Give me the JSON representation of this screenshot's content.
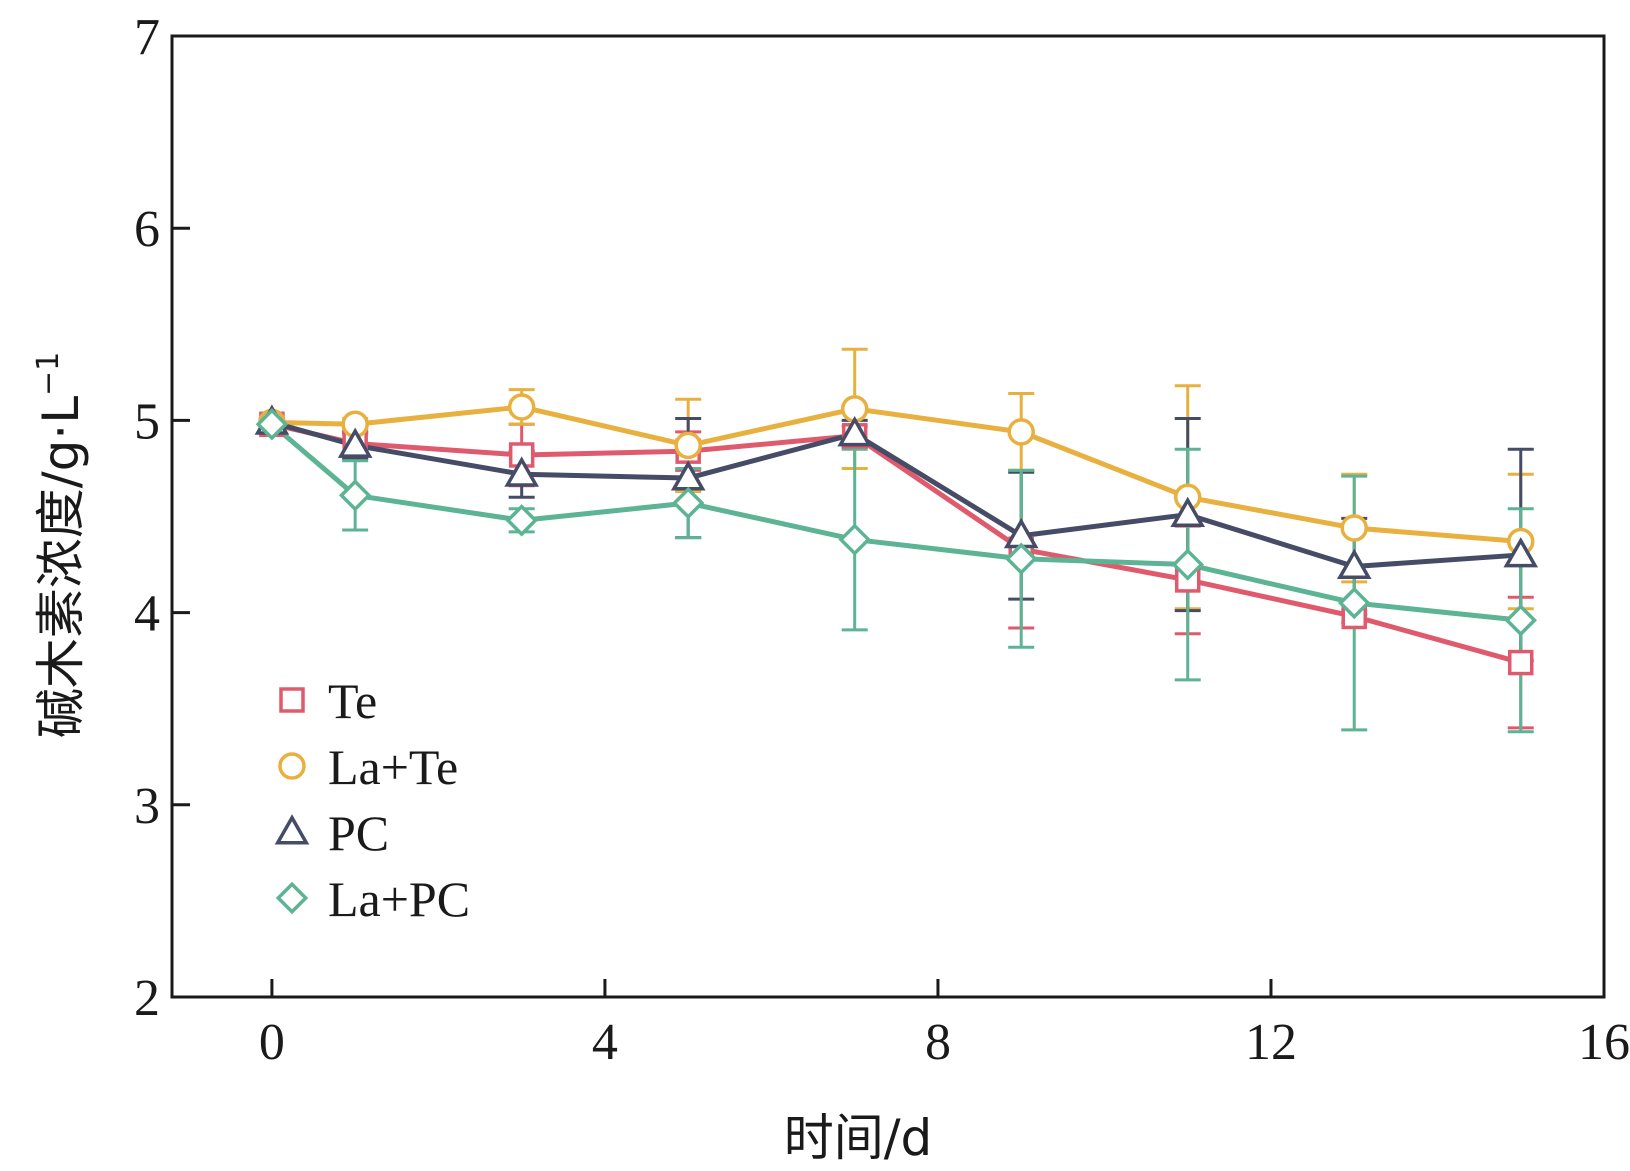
{
  "chart_data": {
    "type": "line",
    "title": "",
    "xlabel": "时间/d",
    "ylabel": "碱木素浓度/g·L",
    "ylabel_superscript": "−1",
    "xlim": [
      -1.2,
      16
    ],
    "ylim": [
      2,
      7
    ],
    "xticks": [
      0,
      4,
      8,
      12,
      16
    ],
    "yticks": [
      2,
      3,
      4,
      5,
      6,
      7
    ],
    "grid": false,
    "legend_position": "lower-left",
    "series": [
      {
        "name": "Te",
        "marker": "square",
        "color": "#e05a6e",
        "x": [
          0,
          1,
          3,
          5,
          7,
          9,
          11,
          13,
          15
        ],
        "y": [
          4.98,
          4.88,
          4.82,
          4.84,
          4.92,
          4.33,
          4.17,
          3.98,
          3.74
        ],
        "err": [
          0.03,
          0.05,
          0.16,
          0.1,
          0.05,
          0.41,
          0.28,
          0.03,
          0.34
        ]
      },
      {
        "name": "La+Te",
        "marker": "circle",
        "color": "#e8b03e",
        "x": [
          0,
          1,
          3,
          5,
          7,
          9,
          11,
          13,
          15
        ],
        "y": [
          4.99,
          4.98,
          5.07,
          4.87,
          5.06,
          4.94,
          4.6,
          4.44,
          4.37
        ],
        "err": [
          0.02,
          0.03,
          0.09,
          0.24,
          0.31,
          0.2,
          0.58,
          0.28,
          0.35
        ]
      },
      {
        "name": "PC",
        "marker": "triangle",
        "color": "#464c66",
        "x": [
          0,
          1,
          3,
          5,
          7,
          9,
          11,
          13,
          15
        ],
        "y": [
          4.99,
          4.87,
          4.72,
          4.7,
          4.93,
          4.4,
          4.51,
          4.24,
          4.3
        ],
        "err": [
          0.02,
          0.07,
          0.12,
          0.31,
          0.07,
          0.33,
          0.5,
          0.25,
          0.55
        ]
      },
      {
        "name": "La+PC",
        "marker": "diamond",
        "color": "#5cb494",
        "x": [
          0,
          1,
          3,
          5,
          7,
          9,
          11,
          13,
          15
        ],
        "y": [
          4.98,
          4.61,
          4.48,
          4.57,
          4.38,
          4.28,
          4.25,
          4.05,
          3.96
        ],
        "err": [
          0.02,
          0.18,
          0.06,
          0.18,
          0.47,
          0.46,
          0.6,
          0.66,
          0.58
        ]
      }
    ]
  }
}
